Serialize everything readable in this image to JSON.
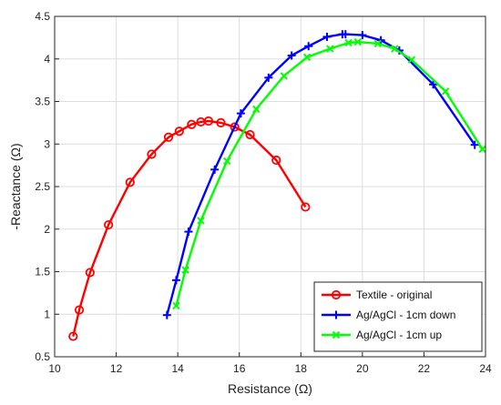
{
  "chart_data": {
    "type": "line",
    "title": "",
    "xlabel": "Resistance (Ω)",
    "ylabel": "-Reactance (Ω)",
    "xlim": [
      10,
      24
    ],
    "ylim": [
      0.5,
      4.5
    ],
    "xticks": [
      "10",
      "12",
      "14",
      "16",
      "18",
      "20",
      "22",
      "24"
    ],
    "yticks": [
      "0.5",
      "1",
      "1.5",
      "2",
      "2.5",
      "3",
      "3.5",
      "4",
      "4.5"
    ],
    "grid": true,
    "legend_position": "bottom-right",
    "series": [
      {
        "name": "Textile - original",
        "color": "#ff0000",
        "marker": "circle",
        "x": [
          10.6,
          10.8,
          11.15,
          11.75,
          12.45,
          13.15,
          13.7,
          14.05,
          14.45,
          14.75,
          15.0,
          15.4,
          15.85,
          16.35,
          17.2,
          18.15
        ],
        "y": [
          0.74,
          1.05,
          1.49,
          2.05,
          2.55,
          2.88,
          3.08,
          3.15,
          3.23,
          3.26,
          3.27,
          3.25,
          3.2,
          3.11,
          2.81,
          2.26
        ]
      },
      {
        "name": "Ag/AgCl - 1cm down",
        "color": "#0000ff",
        "marker": "plus",
        "x": [
          13.65,
          13.95,
          14.35,
          15.2,
          16.05,
          16.95,
          17.7,
          18.25,
          18.85,
          19.35,
          19.45,
          20.0,
          20.6,
          21.2,
          22.3,
          23.65
        ],
        "y": [
          0.99,
          1.4,
          1.97,
          2.7,
          3.36,
          3.78,
          4.04,
          4.15,
          4.26,
          4.29,
          4.29,
          4.28,
          4.22,
          4.1,
          3.7,
          2.99
        ]
      },
      {
        "name": "Ag/AgCl - 1cm up",
        "color": "#00ff00",
        "marker": "x",
        "x": [
          13.95,
          14.25,
          14.75,
          15.6,
          16.55,
          17.45,
          18.2,
          18.95,
          19.55,
          19.85,
          20.5,
          21.05,
          21.6,
          22.7,
          23.9
        ],
        "y": [
          1.1,
          1.52,
          2.1,
          2.8,
          3.41,
          3.8,
          4.02,
          4.12,
          4.19,
          4.2,
          4.18,
          4.12,
          3.99,
          3.62,
          2.94
        ]
      }
    ]
  }
}
